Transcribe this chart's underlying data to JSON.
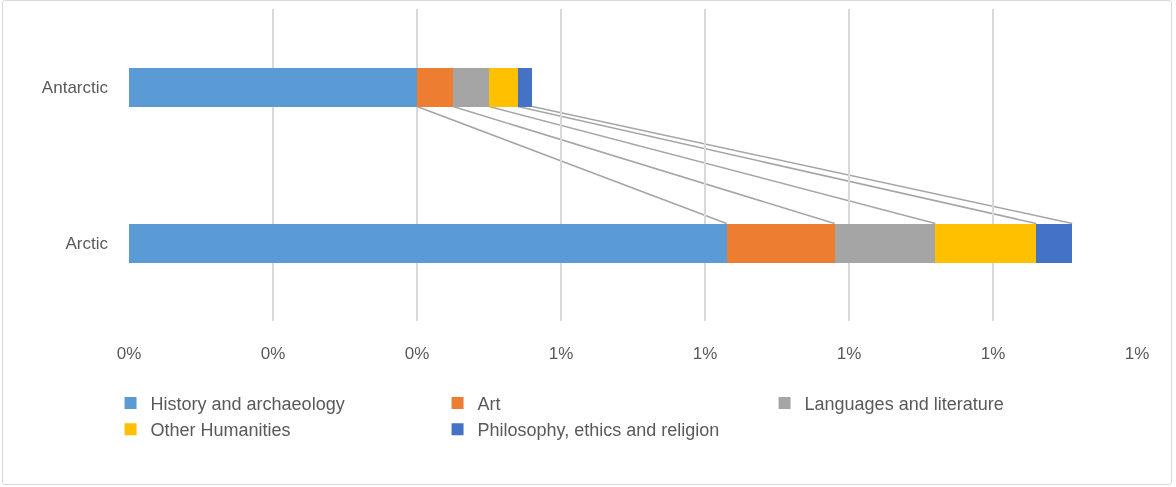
{
  "chart_data": {
    "type": "bar",
    "orientation": "horizontal",
    "stacked": true,
    "categories": [
      "Antarctic",
      "Arctic"
    ],
    "series": [
      {
        "name": "History and archaeology",
        "color": "#5b9bd5",
        "values": [
          0.4,
          0.83
        ]
      },
      {
        "name": "Art",
        "color": "#ed7d31",
        "values": [
          0.05,
          0.15
        ]
      },
      {
        "name": "Languages and literature",
        "color": "#a5a5a5",
        "values": [
          0.05,
          0.14
        ]
      },
      {
        "name": "Other Humanities",
        "color": "#ffc000",
        "values": [
          0.04,
          0.14
        ]
      },
      {
        "name": "Philosophy, ethics and religion",
        "color": "#4472c4",
        "values": [
          0.02,
          0.05
        ]
      }
    ],
    "xlim": [
      0,
      1.4
    ],
    "xticks": [
      {
        "value": 0,
        "label": "0%"
      },
      {
        "value": 0.2,
        "label": "0%"
      },
      {
        "value": 0.4,
        "label": "0%"
      },
      {
        "value": 0.6,
        "label": "1%"
      },
      {
        "value": 0.8,
        "label": "1%"
      },
      {
        "value": 1.0,
        "label": "1%"
      },
      {
        "value": 1.2,
        "label": "1%"
      },
      {
        "value": 1.4,
        "label": "1%"
      }
    ],
    "grid": "x",
    "legend": "bottom"
  }
}
